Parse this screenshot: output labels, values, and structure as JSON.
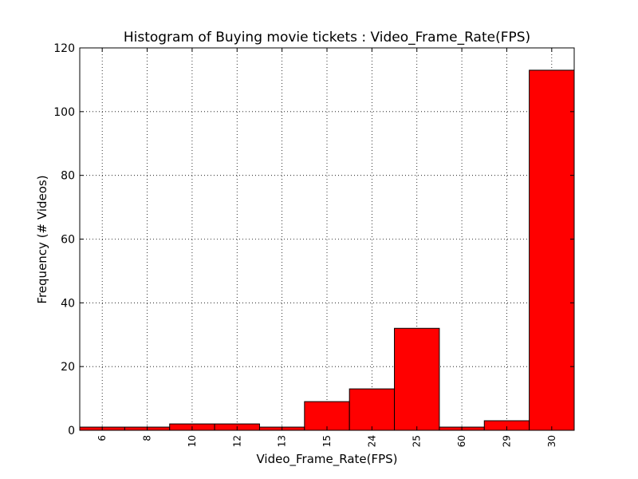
{
  "chart_data": {
    "type": "bar",
    "title": "Histogram of Buying movie tickets : Video_Frame_Rate(FPS)",
    "xlabel": "Video_Frame_Rate(FPS)",
    "ylabel": "Frequency (# Videos)",
    "categories": [
      "6",
      "8",
      "10",
      "12",
      "13",
      "15",
      "24",
      "25",
      "60",
      "29",
      "30"
    ],
    "values": [
      1,
      1,
      2,
      2,
      1,
      9,
      13,
      32,
      1,
      3,
      113
    ],
    "ylim": [
      0,
      120
    ],
    "yticks": [
      "0",
      "20",
      "40",
      "60",
      "80",
      "100",
      "120"
    ],
    "grid": true,
    "colors": {
      "bar": "#ff0000",
      "edge": "#000000"
    }
  }
}
